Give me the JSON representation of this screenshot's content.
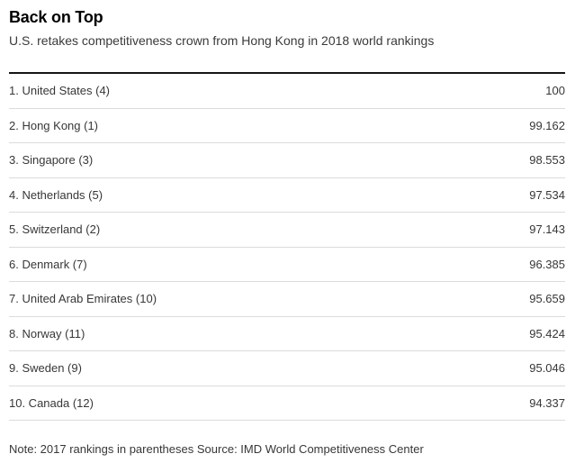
{
  "header": {
    "title": "Back on Top",
    "subtitle": "U.S. retakes competitiveness crown from Hong Kong in 2018 world rankings"
  },
  "table": {
    "rows": [
      {
        "label": "1. United States (4)",
        "value": "100"
      },
      {
        "label": "2. Hong Kong (1)",
        "value": "99.162"
      },
      {
        "label": "3. Singapore (3)",
        "value": "98.553"
      },
      {
        "label": "4. Netherlands (5)",
        "value": "97.534"
      },
      {
        "label": "5. Switzerland (2)",
        "value": "97.143"
      },
      {
        "label": "6. Denmark (7)",
        "value": "96.385"
      },
      {
        "label": "7. United Arab Emirates (10)",
        "value": "95.659"
      },
      {
        "label": "8. Norway (11)",
        "value": "95.424"
      },
      {
        "label": "9. Sweden (9)",
        "value": "95.046"
      },
      {
        "label": "10. Canada (12)",
        "value": "94.337"
      }
    ]
  },
  "footer": {
    "note": "Note: 2017 rankings in parentheses",
    "source": "Source: IMD World Competitiveness Center"
  },
  "colors": {
    "background": "#ffffff",
    "title_text": "#000000",
    "body_text": "#373737",
    "subtitle_text": "#3a3a3a",
    "separator": "#dcdcdc",
    "table_top_rule": "#151515"
  },
  "chart_data": {
    "type": "table",
    "title": "Back on Top",
    "subtitle": "U.S. retakes competitiveness crown from Hong Kong in 2018 world rankings",
    "categories": [
      "United States",
      "Hong Kong",
      "Singapore",
      "Netherlands",
      "Switzerland",
      "Denmark",
      "United Arab Emirates",
      "Norway",
      "Sweden",
      "Canada"
    ],
    "values": [
      100,
      99.162,
      98.553,
      97.534,
      97.143,
      96.385,
      95.659,
      95.424,
      95.046,
      94.337
    ],
    "ranks_2018": [
      1,
      2,
      3,
      4,
      5,
      6,
      7,
      8,
      9,
      10
    ],
    "ranks_2017": [
      4,
      1,
      3,
      5,
      2,
      7,
      10,
      11,
      9,
      12
    ],
    "note": "Note: 2017 rankings in parentheses",
    "source": "Source: IMD World Competitiveness Center"
  }
}
